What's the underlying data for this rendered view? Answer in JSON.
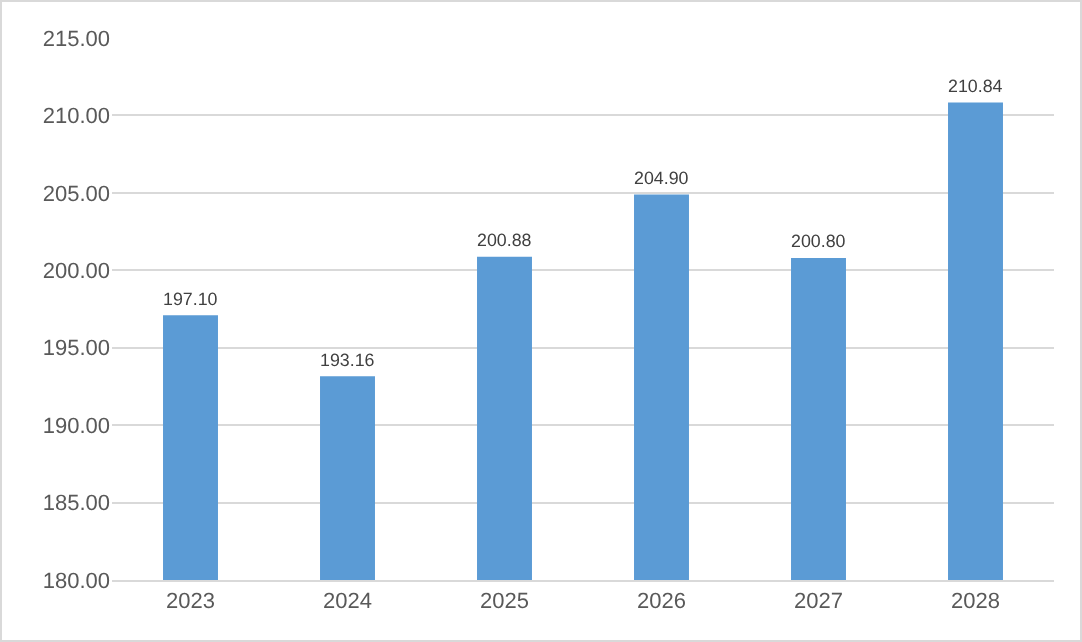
{
  "chart_data": {
    "type": "bar",
    "categories": [
      "2023",
      "2024",
      "2025",
      "2026",
      "2027",
      "2028"
    ],
    "values": [
      197.1,
      193.16,
      200.88,
      204.9,
      200.8,
      210.84
    ],
    "value_labels": [
      "197.10",
      "193.16",
      "200.88",
      "204.90",
      "200.80",
      "210.84"
    ],
    "color": "#5b9bd5",
    "ylim": [
      180,
      215
    ],
    "yticks": [
      {
        "value": 180,
        "label": "180.00"
      },
      {
        "value": 185,
        "label": "185.00"
      },
      {
        "value": 190,
        "label": "190.00"
      },
      {
        "value": 195,
        "label": "195.00"
      },
      {
        "value": 200,
        "label": "200.00"
      },
      {
        "value": 205,
        "label": "205.00"
      },
      {
        "value": 210,
        "label": "210.00"
      },
      {
        "value": 215,
        "label": "215.00"
      }
    ],
    "grid": "y"
  }
}
